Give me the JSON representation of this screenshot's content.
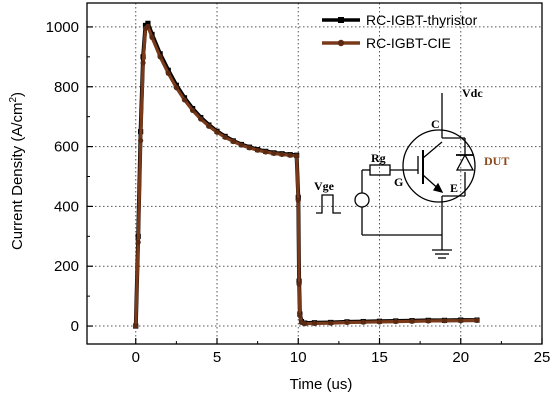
{
  "chart_data": {
    "type": "line",
    "xlabel": "Time (us)",
    "ylabel": "Current Density (A/cm",
    "ylabel_sup": "2",
    "ylabel_end": ")",
    "xlim": [
      -3,
      25
    ],
    "ylim": [
      -60,
      1080
    ],
    "x_ticks": [
      0,
      5,
      10,
      15,
      20,
      25
    ],
    "y_ticks": [
      0,
      200,
      400,
      600,
      800,
      1000
    ],
    "grid": true,
    "legend_position": "top-right",
    "series": [
      {
        "name": "RC-IGBT-thyristor",
        "color": "#000000",
        "marker": "square",
        "x": [
          0,
          0.15,
          0.3,
          0.45,
          0.6,
          0.75,
          1.0,
          1.5,
          2.0,
          2.5,
          3.0,
          3.5,
          4.0,
          4.5,
          5.0,
          5.5,
          6.0,
          6.5,
          7.0,
          7.5,
          8.0,
          8.5,
          9.0,
          9.5,
          9.9,
          10.0,
          10.05,
          10.1,
          10.2,
          10.4,
          11,
          12,
          13,
          14,
          15,
          16,
          17,
          18,
          19,
          20,
          21
        ],
        "y": [
          0,
          300,
          650,
          900,
          1005,
          1012,
          975,
          910,
          855,
          805,
          763,
          727,
          697,
          672,
          651,
          634,
          619,
          607,
          598,
          590,
          584,
          579,
          576,
          573,
          571,
          430,
          150,
          40,
          15,
          10,
          11,
          12,
          14,
          15,
          16,
          17,
          18,
          19,
          19,
          20,
          20
        ]
      },
      {
        "name": "RC-IGBT-CIE",
        "color": "#7a3a1a",
        "marker": "circle",
        "x": [
          0,
          0.15,
          0.3,
          0.45,
          0.6,
          0.75,
          1.0,
          1.5,
          2.0,
          2.5,
          3.0,
          3.5,
          4.0,
          4.5,
          5.0,
          5.5,
          6.0,
          6.5,
          7.0,
          7.5,
          8.0,
          8.5,
          9.0,
          9.5,
          9.9,
          10.0,
          10.05,
          10.1,
          10.2,
          10.4,
          11,
          12,
          13,
          14,
          15,
          16,
          17,
          18,
          19,
          20,
          21
        ],
        "y": [
          0,
          280,
          620,
          880,
          995,
          1002,
          965,
          900,
          845,
          797,
          756,
          721,
          692,
          668,
          648,
          631,
          617,
          605,
          596,
          588,
          582,
          577,
          574,
          571,
          569,
          420,
          140,
          35,
          12,
          8,
          9,
          10,
          12,
          13,
          14,
          15,
          16,
          17,
          18,
          18,
          19
        ]
      }
    ],
    "circuit": {
      "vdc": "Vdc",
      "rg": "Rg",
      "vge": "Vge",
      "g": "G",
      "c": "C",
      "e": "E",
      "dut": "DUT",
      "dut_color": "#8b4a1c"
    }
  }
}
